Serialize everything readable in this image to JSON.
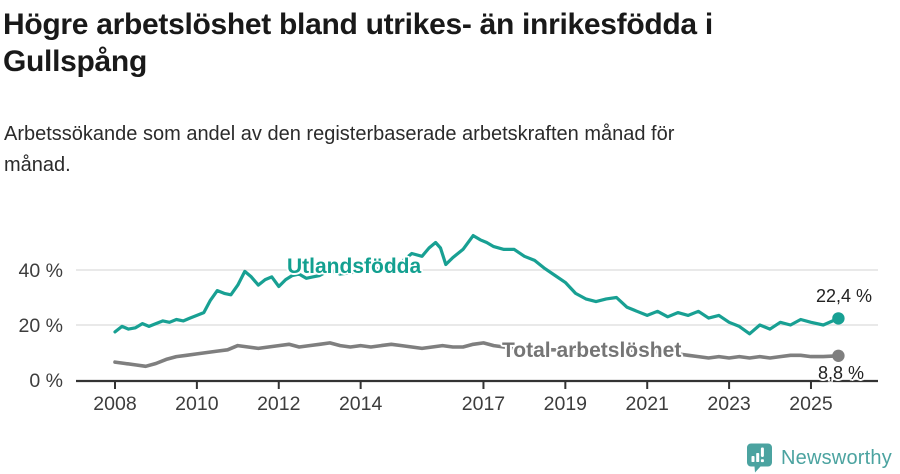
{
  "header": {
    "title_line1": "Högre arbetslöshet bland utrikes- än inrikesfödda i",
    "title_line2": "Gullspång",
    "subtitle_line1": "Arbetssökande som andel av den registerbaserade arbetskraften månad för",
    "subtitle_line2": "månad."
  },
  "colors": {
    "accent_teal": "#18a093",
    "teal_label": "#13a090",
    "gray_line": "#7f7f7f",
    "gray_label": "#757575",
    "axis": "#333333",
    "gridline": "#dcdcdc",
    "tick_text": "#3d3d3d",
    "logo_teal": "#4ba3a0"
  },
  "chart_data": {
    "type": "line",
    "title": "Högre arbetslöshet bland utrikes- än inrikesfödda i Gullspång",
    "xlabel": "",
    "ylabel": "Arbetssökande som andel av den registerbaserade arbetskraften",
    "ylim": [
      0,
      55
    ],
    "xlim": [
      2007.1,
      2026.6
    ],
    "grid": "horizontal",
    "yticks": [
      {
        "v": 0,
        "label": "0 %"
      },
      {
        "v": 20,
        "label": "20 %"
      },
      {
        "v": 40,
        "label": "40 %"
      }
    ],
    "xticks": [
      {
        "v": 2008,
        "label": "2008"
      },
      {
        "v": 2010,
        "label": "2010"
      },
      {
        "v": 2012,
        "label": "2012"
      },
      {
        "v": 2014,
        "label": "2014"
      },
      {
        "v": 2017,
        "label": "2017"
      },
      {
        "v": 2019,
        "label": "2019"
      },
      {
        "v": 2021,
        "label": "2021"
      },
      {
        "v": 2023,
        "label": "2023"
      },
      {
        "v": 2025,
        "label": "2025"
      }
    ],
    "series": [
      {
        "name": "Utlandsfödda",
        "color": "#18a093",
        "end_label": "22,4 %",
        "end_value": 22.4,
        "points": [
          [
            2008.0,
            17.5
          ],
          [
            2008.17,
            19.5
          ],
          [
            2008.33,
            18.5
          ],
          [
            2008.5,
            19
          ],
          [
            2008.67,
            20.5
          ],
          [
            2008.83,
            19.5
          ],
          [
            2009.0,
            20.5
          ],
          [
            2009.17,
            21.5
          ],
          [
            2009.33,
            21
          ],
          [
            2009.5,
            22
          ],
          [
            2009.67,
            21.5
          ],
          [
            2009.83,
            22.5
          ],
          [
            2010.0,
            23.5
          ],
          [
            2010.17,
            24.5
          ],
          [
            2010.33,
            29
          ],
          [
            2010.5,
            32.5
          ],
          [
            2010.67,
            31.5
          ],
          [
            2010.83,
            31
          ],
          [
            2011.0,
            34.5
          ],
          [
            2011.17,
            39.5
          ],
          [
            2011.33,
            37.5
          ],
          [
            2011.5,
            34.5
          ],
          [
            2011.67,
            36.5
          ],
          [
            2011.83,
            37.5
          ],
          [
            2012.0,
            34
          ],
          [
            2012.17,
            36.5
          ],
          [
            2012.33,
            38
          ],
          [
            2012.5,
            38.5
          ],
          [
            2012.67,
            37
          ],
          [
            2012.83,
            37.5
          ],
          [
            2013.0,
            38
          ],
          [
            2013.25,
            40
          ],
          [
            2013.5,
            38.5
          ],
          [
            2013.75,
            39
          ],
          [
            2014.0,
            39.5
          ],
          [
            2014.25,
            41
          ],
          [
            2014.5,
            40
          ],
          [
            2014.75,
            41.5
          ],
          [
            2015.0,
            43
          ],
          [
            2015.25,
            46
          ],
          [
            2015.5,
            45
          ],
          [
            2015.67,
            48
          ],
          [
            2015.83,
            50
          ],
          [
            2015.95,
            48
          ],
          [
            2016.08,
            42
          ],
          [
            2016.25,
            44.5
          ],
          [
            2016.5,
            47.5
          ],
          [
            2016.75,
            52.5
          ],
          [
            2016.92,
            51
          ],
          [
            2017.08,
            50
          ],
          [
            2017.25,
            48.5
          ],
          [
            2017.5,
            47.5
          ],
          [
            2017.75,
            47.5
          ],
          [
            2018.0,
            45
          ],
          [
            2018.25,
            43.5
          ],
          [
            2018.5,
            40.5
          ],
          [
            2018.75,
            38
          ],
          [
            2019.0,
            35.5
          ],
          [
            2019.25,
            31.5
          ],
          [
            2019.5,
            29.5
          ],
          [
            2019.75,
            28.5
          ],
          [
            2020.0,
            29.5
          ],
          [
            2020.25,
            30
          ],
          [
            2020.5,
            26.5
          ],
          [
            2020.75,
            25
          ],
          [
            2021.0,
            23.5
          ],
          [
            2021.25,
            25
          ],
          [
            2021.5,
            23
          ],
          [
            2021.75,
            24.5
          ],
          [
            2022.0,
            23.5
          ],
          [
            2022.25,
            25
          ],
          [
            2022.5,
            22.5
          ],
          [
            2022.75,
            23.5
          ],
          [
            2023.0,
            21
          ],
          [
            2023.25,
            19.5
          ],
          [
            2023.5,
            16.8
          ],
          [
            2023.75,
            20
          ],
          [
            2024.0,
            18.5
          ],
          [
            2024.25,
            21
          ],
          [
            2024.5,
            20
          ],
          [
            2024.75,
            22
          ],
          [
            2025.0,
            21
          ],
          [
            2025.3,
            20
          ],
          [
            2025.67,
            22.4
          ]
        ]
      },
      {
        "name": "Total arbetslöshet",
        "color": "#7f7f7f",
        "end_label": "8,8 %",
        "end_value": 8.8,
        "points": [
          [
            2008.0,
            6.5
          ],
          [
            2008.25,
            6
          ],
          [
            2008.5,
            5.5
          ],
          [
            2008.75,
            5
          ],
          [
            2009.0,
            6
          ],
          [
            2009.25,
            7.5
          ],
          [
            2009.5,
            8.5
          ],
          [
            2009.75,
            9
          ],
          [
            2010.0,
            9.5
          ],
          [
            2010.25,
            10
          ],
          [
            2010.5,
            10.5
          ],
          [
            2010.75,
            11
          ],
          [
            2011.0,
            12.5
          ],
          [
            2011.25,
            12
          ],
          [
            2011.5,
            11.5
          ],
          [
            2011.75,
            12
          ],
          [
            2012.0,
            12.5
          ],
          [
            2012.25,
            13
          ],
          [
            2012.5,
            12
          ],
          [
            2012.75,
            12.5
          ],
          [
            2013.0,
            13
          ],
          [
            2013.25,
            13.5
          ],
          [
            2013.5,
            12.5
          ],
          [
            2013.75,
            12
          ],
          [
            2014.0,
            12.5
          ],
          [
            2014.25,
            12
          ],
          [
            2014.5,
            12.5
          ],
          [
            2014.75,
            13
          ],
          [
            2015.0,
            12.5
          ],
          [
            2015.25,
            12
          ],
          [
            2015.5,
            11.5
          ],
          [
            2015.75,
            12
          ],
          [
            2016.0,
            12.5
          ],
          [
            2016.25,
            12
          ],
          [
            2016.5,
            12
          ],
          [
            2016.75,
            13
          ],
          [
            2017.0,
            13.5
          ],
          [
            2017.25,
            12.5
          ],
          [
            2017.5,
            12
          ],
          [
            2017.75,
            11.5
          ],
          [
            2018.0,
            11.5
          ],
          [
            2018.5,
            11
          ],
          [
            2019.0,
            11
          ],
          [
            2019.5,
            11.5
          ],
          [
            2020.0,
            11.5
          ],
          [
            2020.5,
            11
          ],
          [
            2021.0,
            10.5
          ],
          [
            2021.5,
            10
          ],
          [
            2021.75,
            9.5
          ],
          [
            2022.0,
            9
          ],
          [
            2022.25,
            8.5
          ],
          [
            2022.5,
            8
          ],
          [
            2022.75,
            8.5
          ],
          [
            2023.0,
            8
          ],
          [
            2023.25,
            8.5
          ],
          [
            2023.5,
            8
          ],
          [
            2023.75,
            8.5
          ],
          [
            2024.0,
            8
          ],
          [
            2024.25,
            8.5
          ],
          [
            2024.5,
            9
          ],
          [
            2024.75,
            9
          ],
          [
            2025.0,
            8.5
          ],
          [
            2025.3,
            8.5
          ],
          [
            2025.67,
            8.8
          ]
        ]
      }
    ]
  },
  "footer": {
    "brand": "Newsworthy"
  }
}
